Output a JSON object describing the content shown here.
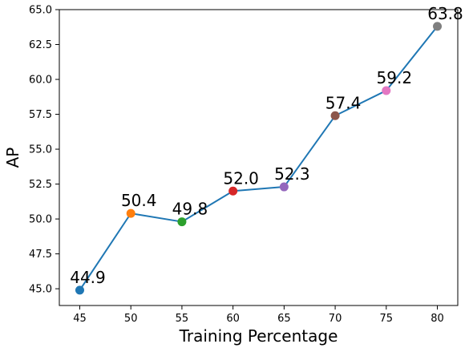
{
  "chart_data": {
    "type": "line",
    "title": "",
    "xlabel": "Training Percentage",
    "ylabel": "AP",
    "x": [
      45,
      50,
      55,
      60,
      65,
      70,
      75,
      80
    ],
    "y": [
      44.9,
      50.4,
      49.8,
      52.0,
      52.3,
      57.4,
      59.2,
      63.8
    ],
    "data_labels": [
      "44.9",
      "50.4",
      "49.8",
      "52.0",
      "52.3",
      "57.4",
      "59.2",
      "63.8"
    ],
    "xticks": [
      45,
      50,
      55,
      60,
      65,
      70,
      75,
      80
    ],
    "xtick_labels": [
      "45",
      "50",
      "55",
      "60",
      "65",
      "70",
      "75",
      "80"
    ],
    "yticks": [
      45.0,
      47.5,
      50.0,
      52.5,
      55.0,
      57.5,
      60.0,
      62.5,
      65.0
    ],
    "ytick_labels": [
      "45.0",
      "47.5",
      "50.0",
      "52.5",
      "55.0",
      "57.5",
      "60.0",
      "62.5",
      "65.0"
    ],
    "xlim": [
      43.0,
      82.0
    ],
    "ylim": [
      43.8,
      65.0
    ],
    "grid": false,
    "legend": "none",
    "line_color": "#1f77b4",
    "marker_colors": [
      "#1f77b4",
      "#ff7f0e",
      "#2ca02c",
      "#d62728",
      "#9467bd",
      "#8c564b",
      "#e377c2",
      "#7f7f7f"
    ]
  }
}
